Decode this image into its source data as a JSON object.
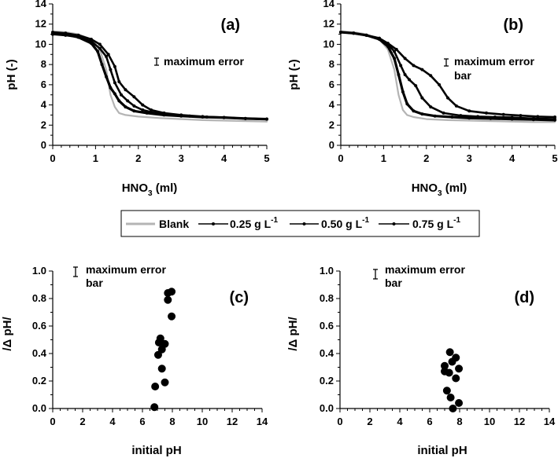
{
  "chart_data": [
    {
      "panel": "(a)",
      "type": "line",
      "xlabel": "HNO3 (ml)",
      "xlabel_main": "HNO",
      "xlabel_sub": "3",
      "xlabel_tail": " (ml)",
      "ylabel": "pH (-)",
      "xlim": [
        0,
        5
      ],
      "ylim": [
        0,
        14
      ],
      "xticks": [
        0,
        1,
        2,
        3,
        4,
        5
      ],
      "yticks": [
        0,
        2,
        4,
        6,
        8,
        10,
        12,
        14
      ],
      "annotation": {
        "line1": "maximum error",
        "line2": "bar"
      },
      "series": [
        {
          "key": "blank",
          "x": [
            0,
            0.3,
            0.6,
            0.9,
            1.1,
            1.25,
            1.35,
            1.45,
            1.55,
            1.7,
            2.0,
            2.5,
            3.0,
            3.5,
            4.0,
            4.5,
            5.0
          ],
          "y": [
            11.3,
            11.2,
            11.0,
            10.5,
            9.5,
            7.5,
            5.0,
            3.8,
            3.2,
            3.0,
            2.85,
            2.7,
            2.6,
            2.5,
            2.45,
            2.4,
            2.35
          ]
        },
        {
          "key": "c025",
          "x": [
            0,
            0.3,
            0.6,
            0.9,
            1.05,
            1.15,
            1.25,
            1.35,
            1.45,
            1.55,
            1.7,
            1.9,
            2.2,
            2.6,
            3.0,
            3.5,
            4.0,
            4.5,
            5.0
          ],
          "y": [
            11.1,
            11.0,
            10.7,
            10.1,
            9.3,
            8.0,
            6.8,
            5.7,
            5.1,
            4.4,
            3.8,
            3.4,
            3.2,
            3.0,
            2.9,
            2.8,
            2.75,
            2.65,
            2.6
          ]
        },
        {
          "key": "c050",
          "x": [
            0,
            0.3,
            0.6,
            0.9,
            1.1,
            1.25,
            1.35,
            1.45,
            1.6,
            1.75,
            1.9,
            2.1,
            2.4,
            2.8,
            3.2,
            3.6,
            4.0,
            4.5,
            5.0
          ],
          "y": [
            11.0,
            10.9,
            10.7,
            10.3,
            9.6,
            8.8,
            7.5,
            6.2,
            5.0,
            4.4,
            3.9,
            3.5,
            3.2,
            3.0,
            2.9,
            2.8,
            2.75,
            2.65,
            2.6
          ]
        },
        {
          "key": "c075",
          "x": [
            0,
            0.3,
            0.6,
            0.9,
            1.1,
            1.3,
            1.45,
            1.55,
            1.7,
            1.9,
            2.1,
            2.3,
            2.6,
            3.0,
            3.5,
            4.0,
            4.5,
            5.0
          ],
          "y": [
            11.2,
            11.1,
            10.9,
            10.5,
            10.0,
            9.0,
            7.8,
            6.3,
            5.5,
            4.8,
            4.0,
            3.5,
            3.2,
            3.0,
            2.85,
            2.75,
            2.65,
            2.6
          ]
        }
      ]
    },
    {
      "panel": "(b)",
      "type": "line",
      "xlabel": "HNO3 (ml)",
      "xlabel_main": "HNO",
      "xlabel_sub": "3",
      "xlabel_tail": " (ml)",
      "ylabel": "pH (-)",
      "xlim": [
        0,
        5
      ],
      "ylim": [
        0,
        14
      ],
      "xticks": [
        0,
        1,
        2,
        3,
        4,
        5
      ],
      "yticks": [
        0,
        2,
        4,
        6,
        8,
        10,
        12,
        14
      ],
      "annotation": {
        "line1": "maximum error",
        "line2": "bar"
      },
      "series": [
        {
          "key": "blank",
          "x": [
            0,
            0.3,
            0.6,
            0.9,
            1.1,
            1.25,
            1.35,
            1.45,
            1.55,
            1.7,
            2.0,
            2.5,
            3.0,
            3.5,
            4.0,
            4.5,
            5.0
          ],
          "y": [
            11.3,
            11.2,
            11.0,
            10.5,
            9.5,
            7.5,
            5.0,
            3.5,
            3.0,
            2.8,
            2.6,
            2.5,
            2.45,
            2.4,
            2.35,
            2.3,
            2.3
          ]
        },
        {
          "key": "c025",
          "x": [
            0,
            0.3,
            0.6,
            0.9,
            1.1,
            1.25,
            1.35,
            1.45,
            1.55,
            1.7,
            1.9,
            2.2,
            2.6,
            3.0,
            3.5,
            4.0,
            4.5,
            5.0
          ],
          "y": [
            11.2,
            11.1,
            10.9,
            10.5,
            9.8,
            8.6,
            7.0,
            5.3,
            4.1,
            3.4,
            3.1,
            2.9,
            2.8,
            2.7,
            2.65,
            2.6,
            2.55,
            2.5
          ]
        },
        {
          "key": "c050",
          "x": [
            0,
            0.3,
            0.6,
            0.9,
            1.1,
            1.25,
            1.4,
            1.5,
            1.6,
            1.75,
            1.9,
            2.1,
            2.4,
            2.8,
            3.2,
            3.6,
            4.0,
            4.5,
            5.0
          ],
          "y": [
            11.2,
            11.1,
            10.9,
            10.6,
            10.0,
            9.3,
            7.9,
            7.0,
            6.5,
            5.9,
            4.7,
            3.8,
            3.2,
            2.95,
            2.85,
            2.8,
            2.75,
            2.65,
            2.6
          ]
        },
        {
          "key": "c075",
          "x": [
            0,
            0.3,
            0.6,
            0.9,
            1.1,
            1.3,
            1.5,
            1.7,
            1.9,
            2.1,
            2.3,
            2.5,
            2.7,
            3.0,
            3.4,
            3.8,
            4.2,
            4.6,
            5.0
          ],
          "y": [
            11.2,
            11.1,
            10.9,
            10.6,
            10.1,
            9.5,
            8.6,
            7.9,
            7.5,
            6.9,
            6.0,
            4.7,
            3.9,
            3.4,
            3.2,
            3.05,
            2.95,
            2.85,
            2.8
          ]
        }
      ]
    },
    {
      "panel": "(c)",
      "type": "scatter",
      "xlabel": "initial pH",
      "ylabel": "/Δ pH/",
      "xlim": [
        0,
        14
      ],
      "ylim": [
        0,
        1.0
      ],
      "xticks": [
        0,
        2,
        4,
        6,
        8,
        10,
        12,
        14
      ],
      "yticks": [
        0.0,
        0.2,
        0.4,
        0.6,
        0.8,
        1.0
      ],
      "annotation": {
        "line1": "maximum error",
        "line2": "bar"
      },
      "points": [
        {
          "x": 6.8,
          "y": 0.01
        },
        {
          "x": 6.85,
          "y": 0.16
        },
        {
          "x": 7.5,
          "y": 0.19
        },
        {
          "x": 7.3,
          "y": 0.29
        },
        {
          "x": 7.05,
          "y": 0.39
        },
        {
          "x": 7.3,
          "y": 0.43
        },
        {
          "x": 7.1,
          "y": 0.48
        },
        {
          "x": 7.5,
          "y": 0.47
        },
        {
          "x": 7.2,
          "y": 0.51
        },
        {
          "x": 7.95,
          "y": 0.67
        },
        {
          "x": 7.7,
          "y": 0.79
        },
        {
          "x": 7.7,
          "y": 0.84
        },
        {
          "x": 7.95,
          "y": 0.85
        }
      ]
    },
    {
      "panel": "(d)",
      "type": "scatter",
      "xlabel": "initial pH",
      "ylabel": "/Δ pH/",
      "xlim": [
        0,
        14
      ],
      "ylim": [
        0,
        1.0
      ],
      "xticks": [
        0,
        2,
        4,
        6,
        8,
        10,
        12,
        14
      ],
      "yticks": [
        0.0,
        0.2,
        0.4,
        0.6,
        0.8,
        1.0
      ],
      "annotation": {
        "line1": "maximum error",
        "line2": "bar"
      },
      "points": [
        {
          "x": 7.55,
          "y": 0.0
        },
        {
          "x": 7.95,
          "y": 0.04
        },
        {
          "x": 7.4,
          "y": 0.08
        },
        {
          "x": 7.15,
          "y": 0.13
        },
        {
          "x": 7.75,
          "y": 0.22
        },
        {
          "x": 7.0,
          "y": 0.27
        },
        {
          "x": 7.3,
          "y": 0.26
        },
        {
          "x": 7.95,
          "y": 0.29
        },
        {
          "x": 7.0,
          "y": 0.31
        },
        {
          "x": 7.5,
          "y": 0.34
        },
        {
          "x": 7.75,
          "y": 0.37
        },
        {
          "x": 7.35,
          "y": 0.41
        }
      ]
    }
  ],
  "legend": {
    "items": [
      {
        "key": "blank",
        "label": "Blank",
        "sup": "",
        "color": "#b4b4b4"
      },
      {
        "key": "c025",
        "label": "0.25 g L",
        "sup": "-1",
        "color": "#000000"
      },
      {
        "key": "c050",
        "label": "0.50 g L",
        "sup": "-1",
        "color": "#000000"
      },
      {
        "key": "c075",
        "label": "0.75 g L",
        "sup": "-1",
        "color": "#000000"
      }
    ]
  },
  "colors": {
    "blank": "#b4b4b4",
    "series": "#000000",
    "points": "#000000"
  }
}
